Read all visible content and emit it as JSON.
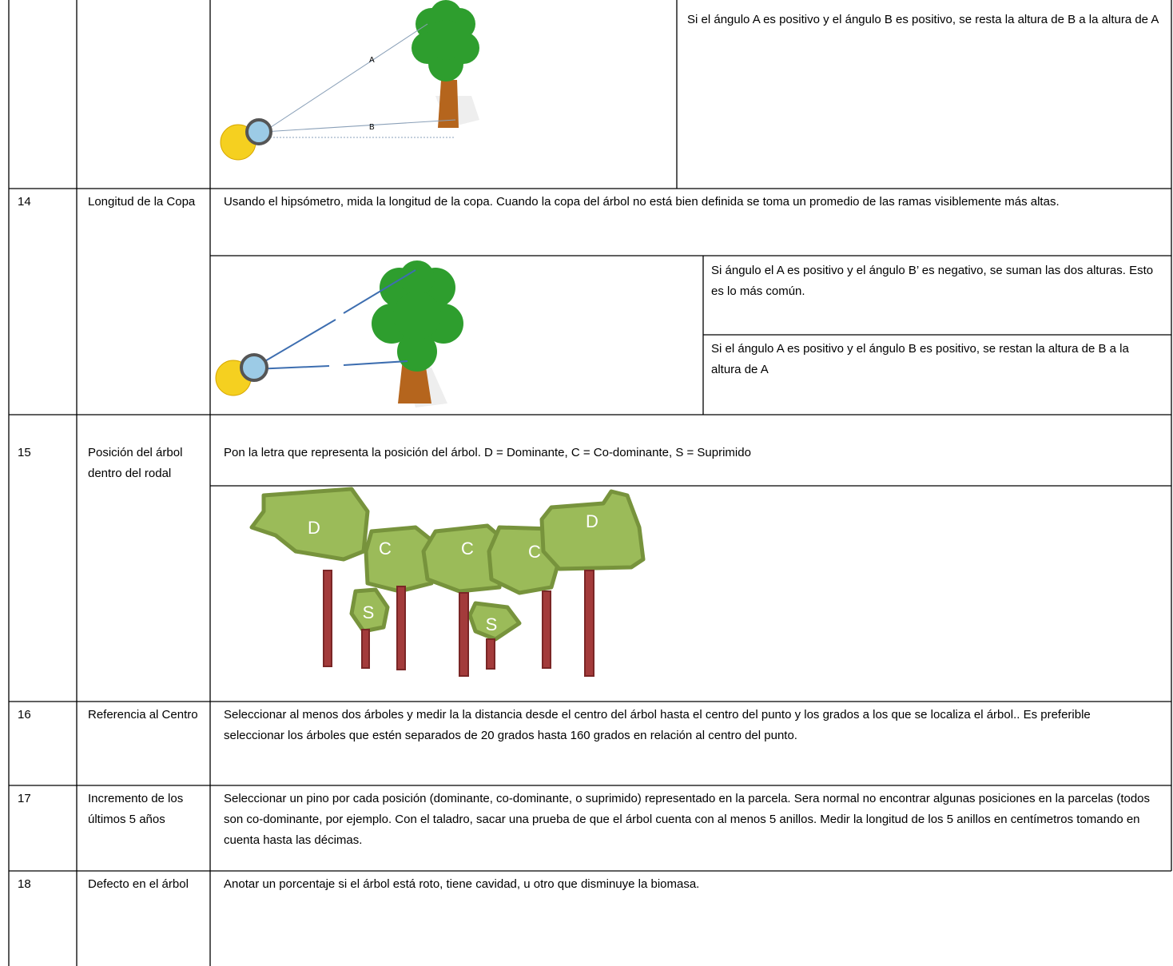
{
  "rows": [
    {
      "notes": [
        "Si el ángulo A es positivo y el ángulo B es positivo, se resta la altura de B a la altura de A"
      ],
      "figure_labels": [
        "A",
        "B"
      ]
    },
    {
      "number": "14",
      "name": "Longitud de la Copa",
      "text": "Usando el hipsómetro, mida la longitud de la copa. Cuando la copa del árbol no está bien definida se toma un promedio de las ramas visiblemente más altas.",
      "notes": [
        "Si ángulo el  A es positivo y el ángulo B’ es negativo, se suman las dos alturas. Esto es lo más común.",
        "Si el ángulo A es positivo y el ángulo B es positivo, se restan la altura de B a la altura de A"
      ]
    },
    {
      "number": "15",
      "name": "Posición del árbol dentro del rodal",
      "text": "Pon la letra que representa la posición del árbol. D = Dominante, C = Co-dominante, S = Suprimido",
      "figure_labels": [
        "D",
        "C",
        "C",
        "C",
        "D",
        "S",
        "S"
      ]
    },
    {
      "number": "16",
      "name": "Referencia al Centro",
      "text": "Seleccionar al menos dos árboles y medir la  la distancia desde el centro del árbol hasta el centro del punto y los grados a los que se localiza el árbol..  Es preferible seleccionar los árboles que estén separados de 20 grados hasta 160 grados en relación al centro del punto."
    },
    {
      "number": "17",
      "name": "Incremento de los últimos 5 años",
      "text": "Seleccionar un pino por cada posición (dominante, co-dominante, o suprimido) representado en la parcela.  Sera normal no encontrar algunas posiciones en la parcelas (todos son co-dominante, por ejemplo.  Con el taladro, sacar una  prueba de que el árbol cuenta con al menos 5 anillos.  Medir la longitud de los 5 anillos en centímetros tomando en cuenta hasta las décimas."
    },
    {
      "number": "18",
      "name": "Defecto en el árbol",
      "text": "Anotar un porcentaje si el árbol está roto, tiene cavidad, u otro que disminuye la biomasa."
    }
  ]
}
